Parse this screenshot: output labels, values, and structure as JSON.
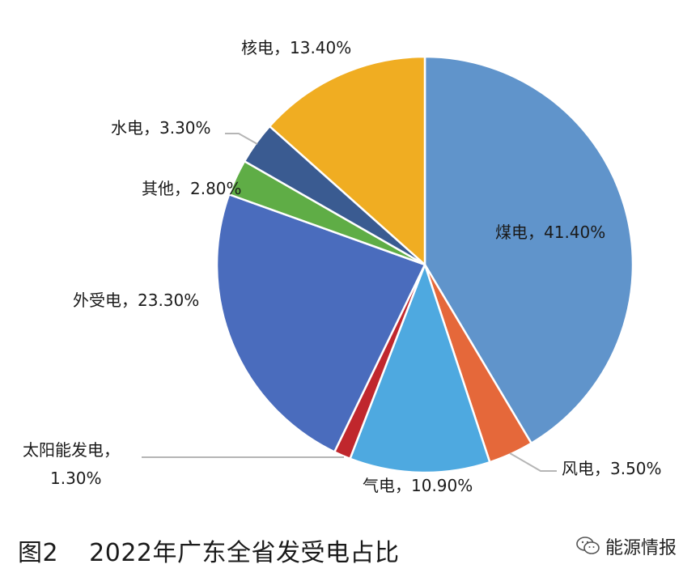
{
  "caption": {
    "figure": "图2",
    "title": "2022年广东全省发受电占比"
  },
  "watermark": {
    "text": "能源情报",
    "icon": "wechat-icon"
  },
  "chart_data": {
    "type": "pie",
    "title": "2022年广东全省发受电占比",
    "start_angle_deg": 0,
    "direction": "clockwise",
    "slices": [
      {
        "name": "煤电",
        "label": "煤电，41.40%",
        "value": 41.4,
        "color": "#6094cb"
      },
      {
        "name": "风电",
        "label": "风电，3.50%",
        "value": 3.5,
        "color": "#e5683a"
      },
      {
        "name": "气电",
        "label": "气电，10.90%",
        "value": 10.9,
        "color": "#4ea9e0"
      },
      {
        "name": "太阳能发电",
        "label_line1": "太阳能发电，",
        "label_line2": "1.30%",
        "value": 1.3,
        "color": "#c0272d"
      },
      {
        "name": "外受电",
        "label": "外受电，23.30%",
        "value": 23.3,
        "color": "#4a6cbd"
      },
      {
        "name": "其他",
        "label": "其他，2.80%",
        "value": 2.8,
        "color": "#5fad46"
      },
      {
        "name": "水电",
        "label": "水电，3.30%",
        "value": 3.3,
        "color": "#3a5b91"
      },
      {
        "name": "核电",
        "label": "核电，13.40%",
        "value": 13.4,
        "color": "#f0ad22"
      }
    ]
  }
}
